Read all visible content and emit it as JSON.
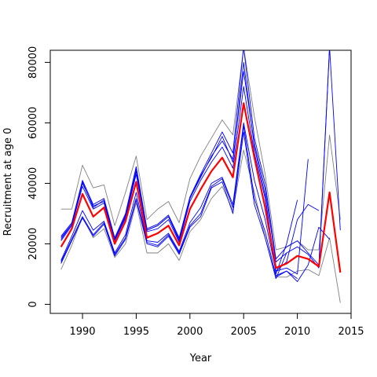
{
  "chart_data": {
    "type": "line",
    "title": "",
    "xlabel": "Year",
    "ylabel": "Recruitment at age 0",
    "xlim": [
      1987,
      2015
    ],
    "ylim": [
      -3000,
      84000
    ],
    "xticks": [
      1990,
      1995,
      2000,
      2005,
      2010,
      2015
    ],
    "yticks": [
      0,
      20000,
      40000,
      60000,
      80000
    ],
    "grid": false,
    "legend": "none",
    "colors": {
      "main": "#ff0000",
      "retro": "#0000ff",
      "bounds": "#808080",
      "axis": "#000000"
    },
    "series": [
      {
        "role": "main",
        "x": [
          1988,
          1989,
          1990,
          1991,
          1992,
          1993,
          1994,
          1995,
          1996,
          1997,
          1998,
          1999,
          2000,
          2001,
          2002,
          2003,
          2004,
          2005,
          2006,
          2007,
          2008,
          2009,
          2010,
          2011,
          2012,
          2013,
          2014
        ],
        "values": [
          19000,
          25000,
          36500,
          29000,
          32000,
          20000,
          27500,
          40500,
          22000,
          23500,
          26000,
          19500,
          31500,
          38000,
          44000,
          48500,
          42000,
          66500,
          48500,
          32000,
          12000,
          13500,
          16000,
          15000,
          12500,
          37000,
          10500
        ]
      },
      {
        "role": "bound-upper",
        "x": [
          1988,
          1989,
          1990,
          1991,
          1992,
          1993,
          1994,
          1995,
          1996,
          1997,
          1998,
          1999,
          2000,
          2001,
          2002,
          2003,
          2004,
          2005,
          2006,
          2007,
          2008,
          2009,
          2010,
          2011,
          2012,
          2013,
          2014
        ],
        "values": [
          31500,
          31500,
          46000,
          38500,
          39500,
          26000,
          37000,
          49000,
          28000,
          31500,
          34000,
          27000,
          41500,
          49000,
          55000,
          61000,
          56000,
          85000,
          62000,
          43000,
          18000,
          19000,
          21000,
          18000,
          18000,
          56000,
          28000
        ]
      },
      {
        "role": "bound-lower",
        "x": [
          1988,
          1989,
          1990,
          1991,
          1992,
          1993,
          1994,
          1995,
          1996,
          1997,
          1998,
          1999,
          2000,
          2001,
          2002,
          2003,
          2004,
          2005,
          2006,
          2007,
          2008,
          2009,
          2010,
          2011,
          2012,
          2013,
          2014
        ],
        "values": [
          11500,
          19500,
          29000,
          22000,
          25000,
          15500,
          20000,
          33500,
          17000,
          17000,
          20000,
          14500,
          24000,
          28000,
          35000,
          39000,
          31000,
          51000,
          37000,
          22000,
          9000,
          9000,
          11000,
          11500,
          9500,
          22000,
          500
        ]
      },
      {
        "role": "retro",
        "x": [
          1988,
          1989,
          1990,
          1991,
          1992,
          1993,
          1994,
          1995,
          1996,
          1997,
          1998,
          1999,
          2000,
          2001,
          2002,
          2003,
          2004,
          2005,
          2006,
          2007,
          2008,
          2009,
          2010,
          2011,
          2012,
          2013,
          2014
        ],
        "values": [
          22500,
          27000,
          41000,
          33000,
          35000,
          22000,
          30000,
          45500,
          25000,
          26500,
          29500,
          22000,
          35500,
          43000,
          50000,
          57000,
          50000,
          85000,
          55000,
          40000,
          15000,
          19000,
          21000,
          17000,
          13000,
          85000,
          24500
        ]
      },
      {
        "role": "retro",
        "x": [
          1988,
          1989,
          1990,
          1991,
          1992,
          1993,
          1994,
          1995,
          1996,
          1997,
          1998,
          1999,
          2000,
          2001,
          2002,
          2003,
          2004,
          2005,
          2006,
          2007,
          2008,
          2009,
          2010,
          2011,
          2012,
          2013
        ],
        "values": [
          21500,
          26500,
          40000,
          32500,
          34000,
          21500,
          29000,
          44000,
          24500,
          26000,
          29000,
          21000,
          35000,
          42000,
          49000,
          54000,
          48000,
          77000,
          53000,
          38000,
          14000,
          17000,
          19000,
          16500,
          12000,
          85000
        ]
      },
      {
        "role": "retro",
        "x": [
          1988,
          1989,
          1990,
          1991,
          1992,
          1993,
          1994,
          1995,
          1996,
          1997,
          1998,
          1999,
          2000,
          2001,
          2002,
          2003,
          2004,
          2005,
          2006,
          2007,
          2008,
          2009,
          2010,
          2011,
          2012
        ],
        "values": [
          21000,
          26000,
          39000,
          31500,
          33500,
          21000,
          28500,
          43000,
          24000,
          25000,
          28000,
          20500,
          34000,
          41000,
          47000,
          52000,
          45000,
          72000,
          50000,
          35000,
          11000,
          14000,
          28000,
          33000,
          31000
        ]
      },
      {
        "role": "retro",
        "x": [
          1988,
          1989,
          1990,
          1991,
          1992,
          1993,
          1994,
          1995,
          1996,
          1997,
          1998,
          1999,
          2000,
          2001,
          2002,
          2003,
          2004,
          2005,
          2006,
          2007,
          2008,
          2009,
          2010,
          2011
        ],
        "values": [
          14500,
          22500,
          31000,
          24500,
          27500,
          17000,
          23000,
          37000,
          21000,
          20500,
          23500,
          17500,
          27000,
          32000,
          40000,
          42000,
          33000,
          60000,
          41000,
          28000,
          11000,
          12000,
          10000,
          48000
        ]
      },
      {
        "role": "retro",
        "x": [
          1988,
          1989,
          1990,
          1991,
          1992,
          1993,
          1994,
          1995,
          1996,
          1997,
          1998,
          1999,
          2000,
          2001,
          2002,
          2003,
          2004,
          2005,
          2006,
          2007,
          2008,
          2009,
          2010
        ],
        "values": [
          14000,
          21500,
          29000,
          23000,
          27000,
          16500,
          22000,
          35000,
          20500,
          19500,
          23000,
          17000,
          26000,
          30000,
          39000,
          41500,
          32000,
          59000,
          35000,
          24000,
          9500,
          11000,
          8500
        ]
      },
      {
        "role": "retro",
        "x": [
          1988,
          1989,
          1990,
          1991,
          1992,
          1993,
          1994,
          1995,
          1996,
          1997,
          1998,
          1999,
          2000,
          2001,
          2002,
          2003,
          2004,
          2005,
          2006,
          2007,
          2008,
          2009
        ],
        "values": [
          13500,
          21000,
          28500,
          22500,
          26500,
          16000,
          21500,
          34500,
          20000,
          19000,
          22500,
          16500,
          25500,
          29000,
          38500,
          40500,
          30000,
          57000,
          33000,
          22000,
          8500,
          17000
        ]
      },
      {
        "role": "retro",
        "x": [
          1988,
          1989,
          1990,
          1991,
          1992,
          1993,
          1994,
          1995,
          1996,
          1997,
          1998,
          1999,
          2000,
          2001,
          2002,
          2003,
          2004,
          2005,
          2006,
          2007,
          2008,
          2009,
          2010
        ],
        "values": [
          22000,
          26500,
          40500,
          32000,
          34500,
          21500,
          29500,
          45000,
          24500,
          26000,
          29000,
          21500,
          35000,
          42500,
          48500,
          55500,
          47000,
          80000,
          52000,
          36000,
          10000,
          20000,
          34500
        ]
      },
      {
        "role": "retro",
        "x": [
          2008,
          2009,
          2010,
          2011,
          2012,
          2013
        ],
        "values": [
          9000,
          11000,
          7500,
          13000,
          25500,
          21500
        ]
      }
    ]
  }
}
